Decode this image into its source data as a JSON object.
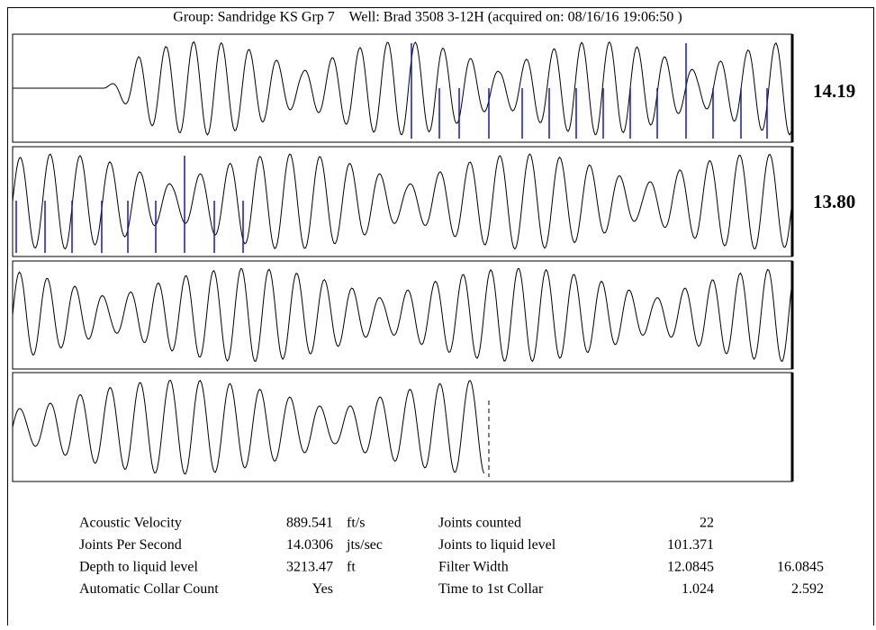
{
  "header": {
    "title": "Group: Sandridge KS Grp 7    Well: Brad 3508 3-12H (acquired on: 08/16/16 19:06:50 )"
  },
  "panel_labels": [
    "14.19",
    "13.80"
  ],
  "table": {
    "rows": [
      {
        "label": "Acoustic Velocity",
        "value": "889.541",
        "unit": "ft/s",
        "label2": "Joints counted",
        "value2": "22"
      },
      {
        "label": "Joints Per Second",
        "value": "14.0306",
        "unit": "jts/sec",
        "label2": "Joints to liquid level",
        "value2": "101.371"
      },
      {
        "label": "Depth to liquid level",
        "value": "3213.47",
        "unit": "ft",
        "label2": "Filter Width",
        "value2": "12.0845",
        "value3": "16.0845"
      },
      {
        "label": "Automatic Collar Count",
        "value": "Yes",
        "label2": "Time to 1st Collar",
        "value2": "1.024",
        "value3": "2.592"
      }
    ]
  }
}
